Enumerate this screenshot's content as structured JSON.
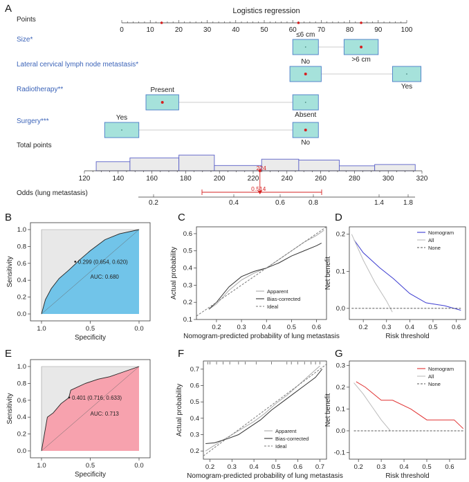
{
  "panel_letters": [
    "A",
    "B",
    "C",
    "D",
    "E",
    "F",
    "G"
  ],
  "chart_data": [
    {
      "type": "nomogram",
      "title": "Logistics regression",
      "points_label": "Points",
      "points_axis": [
        0,
        10,
        20,
        30,
        40,
        50,
        60,
        70,
        80,
        90,
        100
      ],
      "variables": [
        {
          "name": "Size*",
          "levels": [
            {
              "label": "≤6 cm",
              "points": 61,
              "box": [
                60,
                69
              ],
              "label_side": "above",
              "dot": "small"
            },
            {
              "label": ">6 cm",
              "points": 84,
              "box": [
                78,
                90
              ],
              "label_side": "below",
              "dot": "big"
            }
          ]
        },
        {
          "name": "Lateral cervical lymph node metastasis*",
          "levels": [
            {
              "label": "No",
              "points": 62,
              "box": [
                59,
                70
              ],
              "label_side": "above",
              "dot": "big"
            },
            {
              "label": "Yes",
              "points": 100,
              "box": [
                95,
                105
              ],
              "label_side": "below",
              "dot": "small"
            }
          ]
        },
        {
          "name": "Radiotherapy**",
          "levels": [
            {
              "label": "Present",
              "points": 14,
              "box": [
                8.5,
                20
              ],
              "label_side": "above",
              "dot": "big"
            },
            {
              "label": "Absent",
              "points": 62,
              "box": [
                60,
                69
              ],
              "label_side": "below",
              "dot": "small"
            }
          ]
        },
        {
          "name": "Surgery***",
          "levels": [
            {
              "label": "Yes",
              "points": 0,
              "box": [
                -6,
                6
              ],
              "label_side": "above",
              "dot": "small"
            },
            {
              "label": "No",
              "points": 62,
              "box": [
                60,
                69
              ],
              "label_side": "below",
              "dot": "big"
            }
          ]
        }
      ],
      "total_points_label": "Total points",
      "total_points_axis": [
        120,
        140,
        160,
        180,
        200,
        220,
        240,
        260,
        280,
        300,
        320
      ],
      "total_points_hist": [
        {
          "from": 127,
          "to": 147,
          "height": 0.55
        },
        {
          "from": 147,
          "to": 176,
          "height": 0.78
        },
        {
          "from": 176,
          "to": 197,
          "height": 0.95
        },
        {
          "from": 197,
          "to": 225,
          "height": 0.32
        },
        {
          "from": 225,
          "to": 247,
          "height": 0.7
        },
        {
          "from": 247,
          "to": 271,
          "height": 0.65
        },
        {
          "from": 271,
          "to": 292,
          "height": 0.3
        },
        {
          "from": 292,
          "to": 316,
          "height": 0.38
        }
      ],
      "total_points_value": 224,
      "total_points_value_label": "224",
      "odds_label": "Odds (lung metastasis)",
      "odds_ticks": [
        0.2,
        0.4,
        0.6,
        0.8,
        1.4,
        1.8
      ],
      "odds_value": 0.514,
      "odds_value_label": "0.514",
      "odds_ci": [
        0.3,
        0.85
      ]
    },
    {
      "type": "roc",
      "xlabel": "Specificity",
      "ylabel": "Sensitivity",
      "xticks": [
        "1.0",
        "0.5",
        "0.0"
      ],
      "yticks": [
        "0.0",
        "0.2",
        "0.4",
        "0.6",
        "0.8",
        "1.0"
      ],
      "fill_color": "#71c4e9",
      "spec": [
        1.0,
        0.96,
        0.9,
        0.82,
        0.72,
        0.6,
        0.5,
        0.35,
        0.2,
        0.0
      ],
      "sens": [
        0.0,
        0.17,
        0.3,
        0.42,
        0.52,
        0.65,
        0.75,
        0.88,
        0.95,
        1.0
      ],
      "threshold_point": [
        0.654,
        0.62
      ],
      "threshold_label": "0.299 (0.654, 0.620)",
      "auc_label": "AUC: 0.680"
    },
    {
      "type": "line",
      "xlabel": "Nomogram-predicted probability of lung metastasis",
      "ylabel": "Actual probability",
      "xlim": [
        0.12,
        0.64
      ],
      "ylim": [
        0.1,
        0.64
      ],
      "xticks": [
        0.2,
        0.3,
        0.4,
        0.5,
        0.6
      ],
      "yticks": [
        0.1,
        0.2,
        0.3,
        0.4,
        0.5,
        0.6
      ],
      "series": [
        {
          "name": "Apparent",
          "x": [
            0.17,
            0.2,
            0.25,
            0.3,
            0.35,
            0.4,
            0.45,
            0.5,
            0.55,
            0.6,
            0.63
          ],
          "y": [
            0.16,
            0.19,
            0.27,
            0.33,
            0.37,
            0.4,
            0.45,
            0.5,
            0.55,
            0.59,
            0.62
          ],
          "color": "#aaaaaa"
        },
        {
          "name": "Bias-corrected",
          "x": [
            0.17,
            0.2,
            0.25,
            0.3,
            0.35,
            0.4,
            0.45,
            0.5,
            0.55,
            0.6,
            0.62
          ],
          "y": [
            0.16,
            0.2,
            0.29,
            0.35,
            0.38,
            0.4,
            0.43,
            0.47,
            0.5,
            0.53,
            0.545
          ],
          "color": "#333333"
        },
        {
          "name": "Ideal",
          "x": [
            0.12,
            0.64
          ],
          "y": [
            0.12,
            0.64
          ],
          "color": "#777777",
          "dash": true
        }
      ],
      "rug": false
    },
    {
      "type": "line",
      "xlabel": "Risk threshold",
      "ylabel": "Net benefit",
      "xlim": [
        0.14,
        0.64
      ],
      "ylim": [
        -0.03,
        0.22
      ],
      "xticks": [
        0.2,
        0.3,
        0.4,
        0.5,
        0.6
      ],
      "yticks": [
        0.0,
        0.1,
        0.2
      ],
      "series": [
        {
          "name": "Nomogram",
          "x": [
            0.16,
            0.2,
            0.27,
            0.33,
            0.4,
            0.47,
            0.55,
            0.62
          ],
          "y": [
            0.185,
            0.15,
            0.11,
            0.08,
            0.04,
            0.015,
            0.007,
            -0.005
          ],
          "color": "#3a3ad0"
        },
        {
          "name": "All",
          "x": [
            0.15,
            0.2,
            0.25,
            0.3,
            0.325
          ],
          "y": [
            0.2,
            0.13,
            0.07,
            0.02,
            -0.01
          ],
          "color": "#bbbbbb"
        },
        {
          "name": "None",
          "x": [
            0.15,
            0.62
          ],
          "y": [
            0.0,
            0.0
          ],
          "color": "#555555",
          "dash": true
        }
      ],
      "legend": "top-right"
    },
    {
      "type": "roc",
      "xlabel": "Specificity",
      "ylabel": "Sensitivity",
      "xticks": [
        "1.0",
        "0.5",
        "0.0"
      ],
      "yticks": [
        "0.0",
        "0.2",
        "0.4",
        "0.6",
        "0.8",
        "1.0"
      ],
      "fill_color": "#f7a2ae",
      "spec": [
        1.0,
        0.94,
        0.88,
        0.8,
        0.72,
        0.7,
        0.55,
        0.42,
        0.3,
        0.2,
        0.0
      ],
      "sens": [
        0.0,
        0.4,
        0.45,
        0.56,
        0.63,
        0.72,
        0.8,
        0.85,
        0.88,
        0.92,
        1.0
      ],
      "threshold_point": [
        0.716,
        0.633
      ],
      "threshold_label": "0.401 (0.716, 0.633)",
      "auc_label": "AUC: 0.713"
    },
    {
      "type": "line",
      "xlabel": "Nomogram-predicted probability of lung metastasis",
      "ylabel": "Actual probability",
      "xlim": [
        0.17,
        0.73
      ],
      "ylim": [
        0.15,
        0.75
      ],
      "xticks": [
        0.2,
        0.3,
        0.4,
        0.5,
        0.6,
        0.7
      ],
      "yticks": [
        0.2,
        0.3,
        0.4,
        0.5,
        0.6,
        0.7
      ],
      "series": [
        {
          "name": "Apparent",
          "x": [
            0.18,
            0.25,
            0.3,
            0.35,
            0.4,
            0.45,
            0.5,
            0.55,
            0.6,
            0.65,
            0.7
          ],
          "y": [
            0.2,
            0.26,
            0.3,
            0.34,
            0.38,
            0.43,
            0.49,
            0.54,
            0.6,
            0.66,
            0.72
          ],
          "color": "#aaaaaa"
        },
        {
          "name": "Bias-corrected",
          "x": [
            0.18,
            0.22,
            0.28,
            0.33,
            0.38,
            0.43,
            0.48,
            0.53,
            0.58,
            0.63,
            0.68,
            0.71
          ],
          "y": [
            0.245,
            0.25,
            0.275,
            0.3,
            0.345,
            0.39,
            0.45,
            0.5,
            0.55,
            0.6,
            0.65,
            0.7
          ],
          "color": "#333333"
        },
        {
          "name": "Ideal",
          "x": [
            0.17,
            0.73
          ],
          "y": [
            0.17,
            0.73
          ],
          "color": "#777777",
          "dash": true
        }
      ],
      "rug": true,
      "rug_x": [
        0.19,
        0.2,
        0.23,
        0.26,
        0.29,
        0.33,
        0.36,
        0.41,
        0.48,
        0.55,
        0.57,
        0.6,
        0.63,
        0.66,
        0.68,
        0.7
      ]
    },
    {
      "type": "line",
      "xlabel": "Risk threshold",
      "ylabel": "Net benefit",
      "xlim": [
        0.16,
        0.67
      ],
      "ylim": [
        -0.13,
        0.32
      ],
      "xticks": [
        0.2,
        0.3,
        0.4,
        0.5,
        0.6
      ],
      "yticks": [
        -0.1,
        0.0,
        0.1,
        0.2,
        0.3
      ],
      "series": [
        {
          "name": "Nomogram",
          "x": [
            0.19,
            0.23,
            0.3,
            0.35,
            0.43,
            0.5,
            0.58,
            0.62,
            0.66
          ],
          "y": [
            0.225,
            0.2,
            0.14,
            0.14,
            0.1,
            0.05,
            0.05,
            0.05,
            0.01
          ],
          "color": "#e03030"
        },
        {
          "name": "All",
          "x": [
            0.18,
            0.22,
            0.26,
            0.3,
            0.34
          ],
          "y": [
            0.22,
            0.17,
            0.11,
            0.05,
            0.0
          ],
          "color": "#bbbbbb"
        },
        {
          "name": "None",
          "x": [
            0.18,
            0.66
          ],
          "y": [
            0.0,
            0.0
          ],
          "color": "#555555",
          "dash": true
        }
      ],
      "legend": "top-right"
    }
  ]
}
